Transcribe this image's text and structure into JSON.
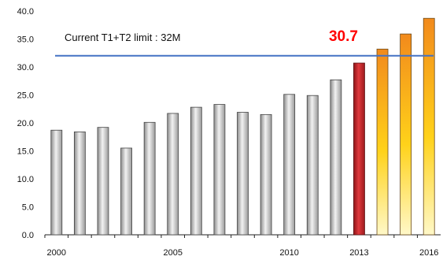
{
  "chart_data": {
    "type": "bar",
    "x": [
      2000,
      2001,
      2002,
      2003,
      2004,
      2005,
      2006,
      2007,
      2008,
      2009,
      2010,
      2011,
      2012,
      2013,
      2014,
      2015,
      2016
    ],
    "values": [
      18.7,
      18.4,
      19.2,
      15.5,
      20.1,
      21.7,
      22.8,
      23.3,
      21.9,
      21.5,
      25.1,
      24.9,
      27.7,
      30.7,
      33.2,
      35.9,
      38.7
    ],
    "x_tick_labels": [
      "2000",
      "2005",
      "2010",
      "2013",
      "2016"
    ],
    "x_tick_years": [
      2000,
      2005,
      2010,
      2013,
      2016
    ],
    "y_ticks": [
      "0.0",
      "5.0",
      "10.0",
      "15.0",
      "20.0",
      "25.0",
      "30.0",
      "35.0",
      "40.0"
    ],
    "ylim": [
      0,
      40
    ],
    "grid": false,
    "reference_line": {
      "value": 32,
      "label": "Current T1+T2 limit : 32M",
      "color": "#4472c4"
    },
    "annotation": {
      "text": "30.7",
      "year": 2013,
      "color": "#ff0000"
    },
    "colors": {
      "historical": "#d9d9d9",
      "current": "#c0262b",
      "projected_top": "#f28a1c",
      "projected_bottom": "#fff8c8"
    },
    "title": "",
    "xlabel": "",
    "ylabel": ""
  }
}
